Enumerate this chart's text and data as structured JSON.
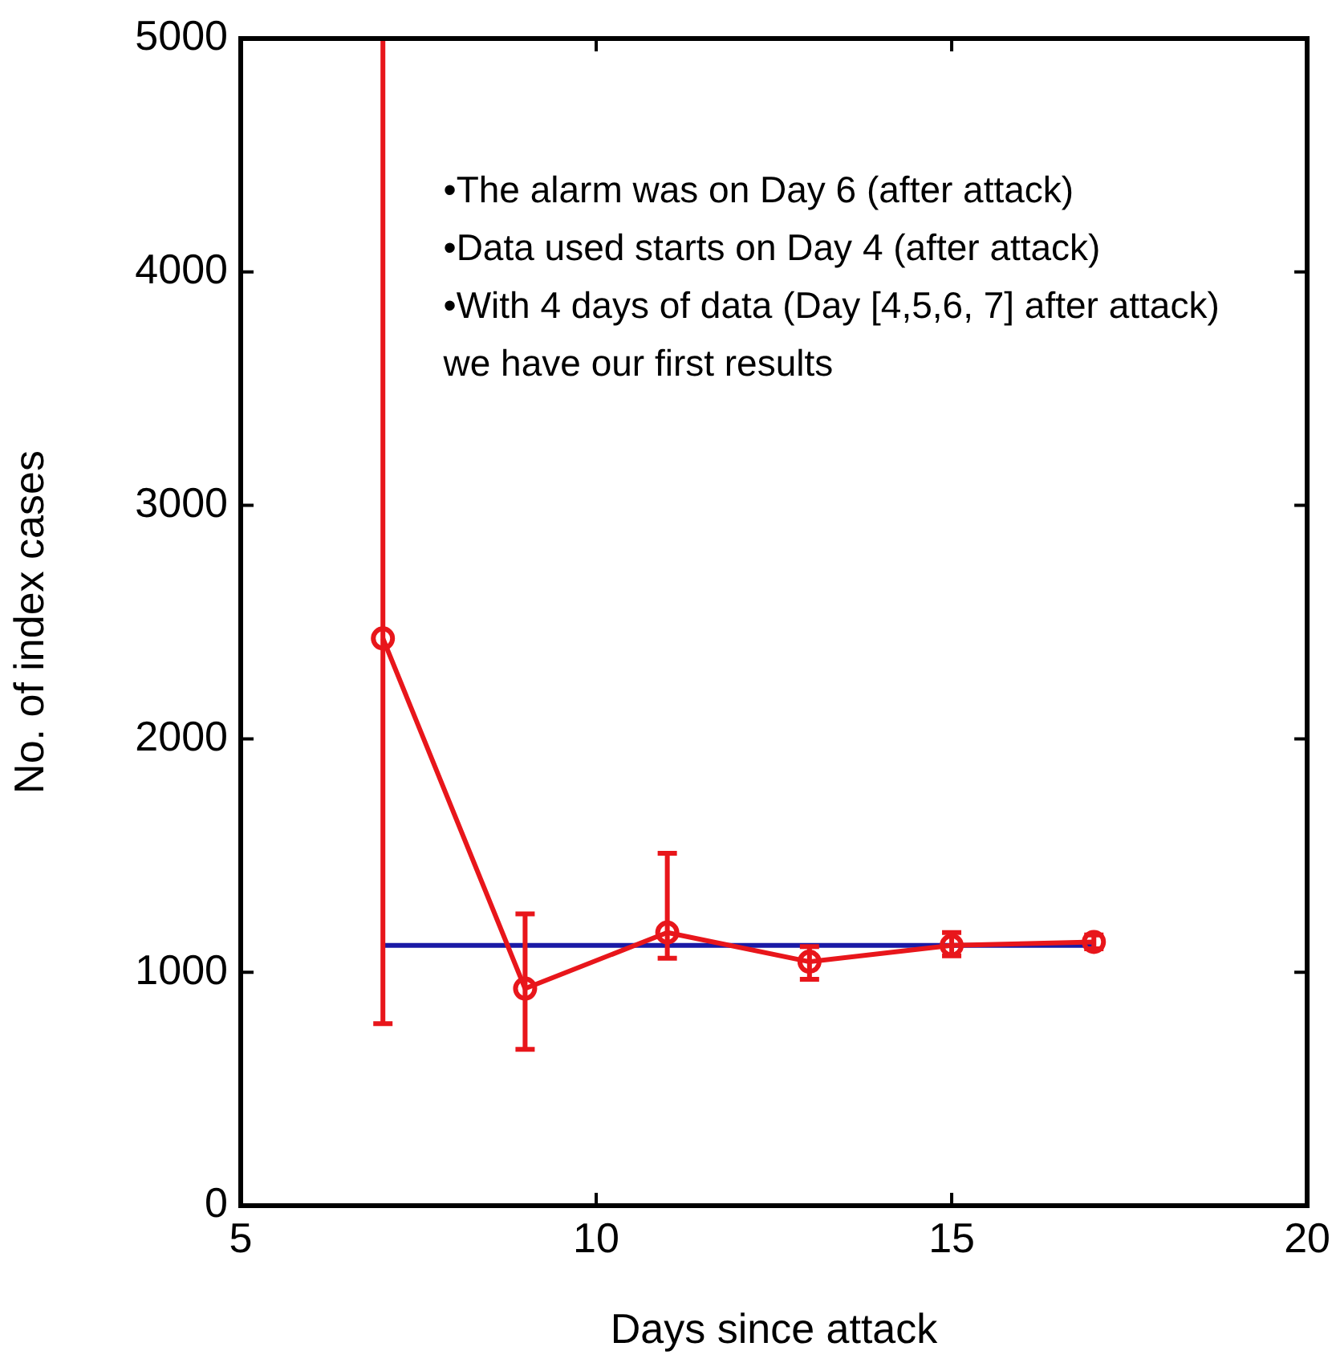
{
  "chart_data": {
    "type": "line",
    "xlabel": "Days since attack",
    "ylabel": "No. of index cases",
    "xlim": [
      5,
      20
    ],
    "xticks": [
      5,
      10,
      15,
      20
    ],
    "ylim": [
      0,
      5000
    ],
    "yticks": [
      0,
      1000,
      2000,
      3000,
      4000,
      5000
    ],
    "grid": false,
    "legend": false,
    "line_style": "solid",
    "series": [
      {
        "color": "#e8161b",
        "marker": "circle",
        "x": [
          7,
          9,
          11,
          13,
          15,
          17
        ],
        "values": [
          2430,
          930,
          1170,
          1045,
          1115,
          1130
        ],
        "errors": [
          [
            780,
            5000
          ],
          [
            670,
            1250
          ],
          [
            1060,
            1510
          ],
          [
            970,
            1110
          ],
          [
            1070,
            1170
          ],
          [
            1100,
            1160
          ]
        ]
      },
      {
        "color": "#1a1aa6",
        "x": [
          7,
          17
        ],
        "values": [
          1115,
          1115
        ]
      }
    ],
    "annotations": [
      "•The alarm was on Day 6 (after attack)",
      "•Data used starts on Day 4 (after attack)",
      "•With 4 days of data (Day [4,5,6, 7] after attack) we have our first results"
    ]
  }
}
